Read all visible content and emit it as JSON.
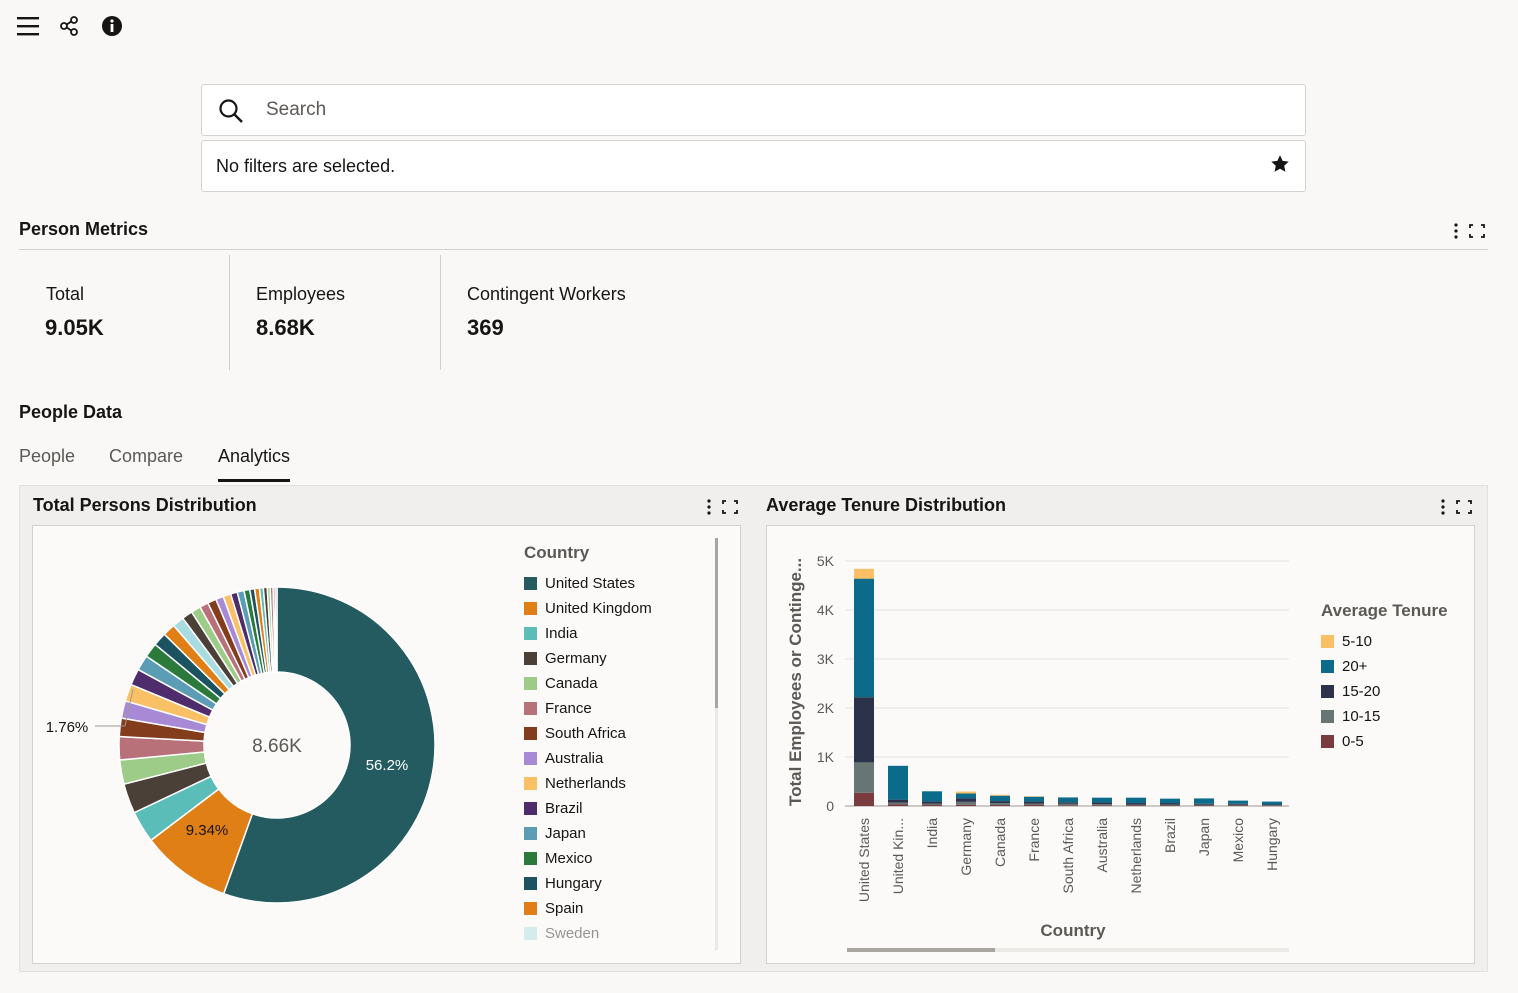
{
  "toolbar": {
    "menu_icon": "hamburger-icon",
    "share_icon": "share-icon",
    "info_icon": "info-icon"
  },
  "search": {
    "placeholder": "Search"
  },
  "filters": {
    "text": "No filters are selected."
  },
  "person_metrics": {
    "title": "Person Metrics",
    "metrics": [
      {
        "label": "Total",
        "value": "9.05K"
      },
      {
        "label": "Employees",
        "value": "8.68K"
      },
      {
        "label": "Contingent Workers",
        "value": "369"
      }
    ]
  },
  "people_data": {
    "title": "People Data",
    "tabs": [
      {
        "label": "People",
        "active": false
      },
      {
        "label": "Compare",
        "active": false
      },
      {
        "label": "Analytics",
        "active": true
      }
    ]
  },
  "total_persons": {
    "title": "Total Persons Distribution",
    "center_label": "8.66K",
    "slice_labels": {
      "us": "56.2%",
      "uk": "9.34%",
      "small": "1.76%"
    },
    "legend_title": "Country",
    "legend": [
      {
        "label": "United States",
        "color": "#235b60"
      },
      {
        "label": "United Kingdom",
        "color": "#e07f16"
      },
      {
        "label": "India",
        "color": "#5bbdb7"
      },
      {
        "label": "Germany",
        "color": "#4a4038"
      },
      {
        "label": "Canada",
        "color": "#9dcc88"
      },
      {
        "label": "France",
        "color": "#b87079"
      },
      {
        "label": "South Africa",
        "color": "#833c1c"
      },
      {
        "label": "Australia",
        "color": "#a889d6"
      },
      {
        "label": "Netherlands",
        "color": "#f9c066"
      },
      {
        "label": "Brazil",
        "color": "#4f2c6c"
      },
      {
        "label": "Japan",
        "color": "#5a9db5"
      },
      {
        "label": "Mexico",
        "color": "#2b7a3c"
      },
      {
        "label": "Hungary",
        "color": "#1d5360"
      },
      {
        "label": "Spain",
        "color": "#e07f16"
      },
      {
        "label": "Sweden",
        "color": "#a9dce0"
      }
    ]
  },
  "chart_data": [
    {
      "type": "pie",
      "title": "Total Persons Distribution",
      "legend_title": "Country",
      "total": "8.66K",
      "slices": [
        {
          "label": "United States",
          "percent": 56.2
        },
        {
          "label": "United Kingdom",
          "percent": 9.34
        },
        {
          "label": "India",
          "percent": 3.3
        },
        {
          "label": "Germany",
          "percent": 3.1
        },
        {
          "label": "Canada",
          "percent": 2.5
        },
        {
          "label": "France",
          "percent": 2.4
        },
        {
          "label": "South Africa",
          "percent": 1.9
        },
        {
          "label": "Australia",
          "percent": 1.8
        },
        {
          "label": "Netherlands",
          "percent": 1.76
        },
        {
          "label": "Brazil",
          "percent": 1.7
        },
        {
          "label": "Japan",
          "percent": 1.6
        },
        {
          "label": "Mexico",
          "percent": 1.5
        },
        {
          "label": "Hungary",
          "percent": 1.4
        },
        {
          "label": "Spain",
          "percent": 1.3
        },
        {
          "label": "Sweden",
          "percent": 1.2
        },
        {
          "label": "",
          "percent": 1.1
        },
        {
          "label": "",
          "percent": 1.0
        },
        {
          "label": "",
          "percent": 0.9
        },
        {
          "label": "",
          "percent": 0.9
        },
        {
          "label": "",
          "percent": 0.8
        },
        {
          "label": "",
          "percent": 0.8
        },
        {
          "label": "",
          "percent": 0.7
        },
        {
          "label": "",
          "percent": 0.7
        },
        {
          "label": "",
          "percent": 0.6
        },
        {
          "label": "",
          "percent": 0.5
        },
        {
          "label": "",
          "percent": 0.5
        },
        {
          "label": "",
          "percent": 0.4
        },
        {
          "label": "",
          "percent": 0.4
        },
        {
          "label": "",
          "percent": 0.3
        },
        {
          "label": "",
          "percent": 0.3
        },
        {
          "label": "",
          "percent": 0.2
        },
        {
          "label": "",
          "percent": 0.2
        }
      ],
      "slice_colors": [
        "#235b60",
        "#e07f16",
        "#5bbdb7",
        "#4a4038",
        "#9dcc88",
        "#b87079",
        "#833c1c",
        "#a889d6",
        "#f9c066",
        "#4f2c6c",
        "#5a9db5",
        "#2b7a3c",
        "#1d5360",
        "#e07f16",
        "#a9dce0",
        "#4a4038",
        "#9dcc88",
        "#b87079",
        "#833c1c",
        "#a889d6",
        "#f9c066",
        "#4f2c6c",
        "#5a9db5",
        "#2b7a3c",
        "#1d5360",
        "#e07f16",
        "#5bbdb7",
        "#4a4038",
        "#9dcc88",
        "#b87079",
        "#833c1c",
        "#a889d6"
      ]
    },
    {
      "type": "bar",
      "stacked": true,
      "title": "Average Tenure Distribution",
      "xlabel": "Country",
      "ylabel": "Total Employees or Continge...",
      "ylim": [
        0,
        5000
      ],
      "yticks": [
        "0",
        "1K",
        "2K",
        "3K",
        "4K",
        "5K"
      ],
      "legend_title": "Average Tenure",
      "legend_position": "right",
      "categories": [
        "United States",
        "United Kin...",
        "India",
        "Germany",
        "Canada",
        "France",
        "South Africa",
        "Australia",
        "Netherlands",
        "Brazil",
        "Japan",
        "Mexico",
        "Hungary"
      ],
      "series": [
        {
          "name": "0-5",
          "color": "#7a3c3f",
          "values": [
            270,
            30,
            20,
            25,
            20,
            20,
            15,
            15,
            10,
            10,
            10,
            10,
            5
          ]
        },
        {
          "name": "10-15",
          "color": "#687575",
          "values": [
            620,
            40,
            30,
            60,
            40,
            30,
            30,
            25,
            20,
            20,
            15,
            15,
            10
          ]
        },
        {
          "name": "15-20",
          "color": "#2c324a",
          "values": [
            1330,
            60,
            40,
            70,
            40,
            40,
            30,
            30,
            30,
            30,
            20,
            20,
            15
          ]
        },
        {
          "name": "20+",
          "color": "#0c6b8b",
          "values": [
            2420,
            690,
            210,
            100,
            110,
            100,
            100,
            100,
            110,
            90,
            110,
            65,
            60
          ]
        },
        {
          "name": "5-10",
          "color": "#f9c066",
          "values": [
            200,
            0,
            0,
            40,
            20,
            10,
            0,
            0,
            0,
            0,
            0,
            0,
            0
          ]
        }
      ]
    }
  ],
  "tenure": {
    "title": "Average Tenure Distribution",
    "legend_title": "Average Tenure",
    "legend": [
      {
        "label": "5-10",
        "color": "#f9c066"
      },
      {
        "label": "20+",
        "color": "#0c6b8b"
      },
      {
        "label": "15-20",
        "color": "#2c324a"
      },
      {
        "label": "10-15",
        "color": "#687575"
      },
      {
        "label": "0-5",
        "color": "#7a3c3f"
      }
    ],
    "xlabel": "Country",
    "ylabel": "Total Employees or Continge..."
  }
}
